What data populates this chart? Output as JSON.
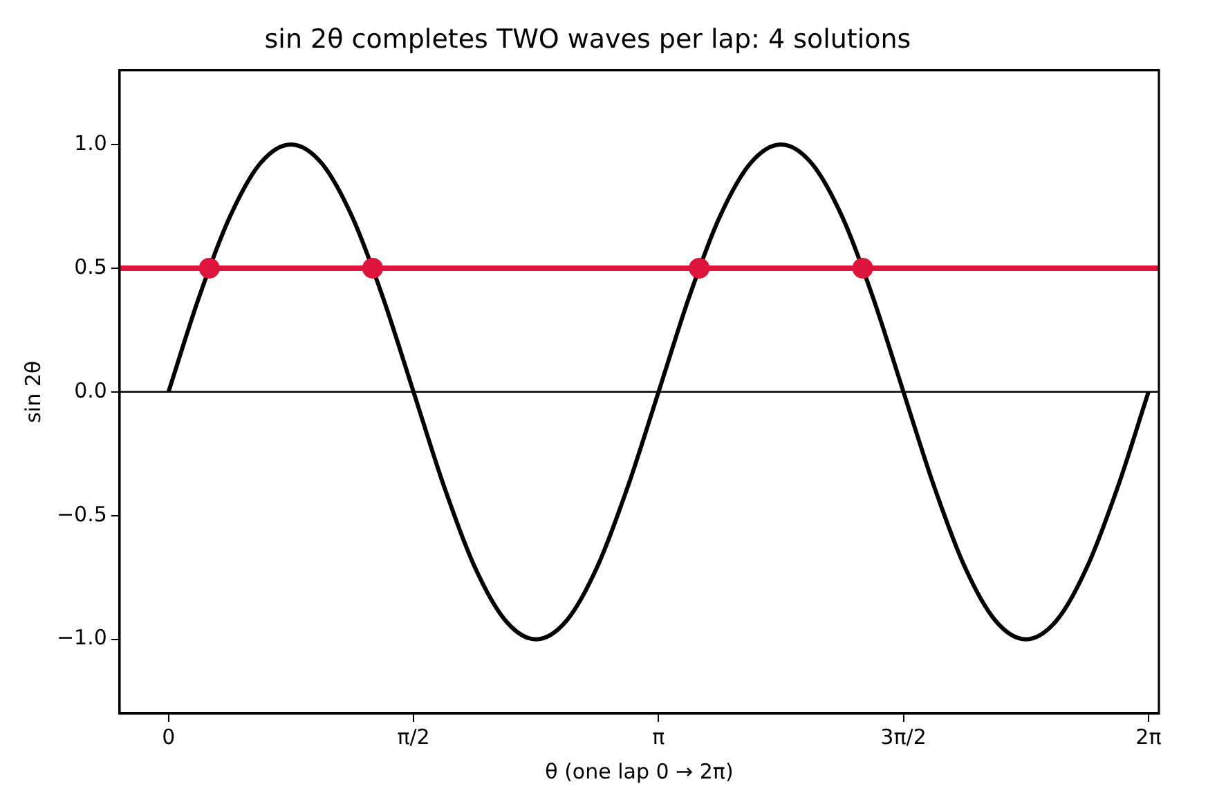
{
  "chart_data": {
    "type": "line",
    "title": "sin 2θ completes TWO waves per lap: 4 solutions",
    "xlabel": "θ (one lap 0 → 2π)",
    "ylabel": "sin 2θ",
    "xlim": [
      -0.314,
      6.35
    ],
    "ylim": [
      -1.3,
      1.3
    ],
    "xticks": [
      {
        "value": 0,
        "label": "0"
      },
      {
        "value": 1.571,
        "label": "π/2"
      },
      {
        "value": 3.142,
        "label": "π"
      },
      {
        "value": 4.712,
        "label": "3π/2"
      },
      {
        "value": 6.283,
        "label": "2π"
      }
    ],
    "yticks": [
      {
        "value": -1,
        "label": "−1.0"
      },
      {
        "value": -0.5,
        "label": "−0.5"
      },
      {
        "value": 0,
        "label": "0.0"
      },
      {
        "value": 0.5,
        "label": "0.5"
      },
      {
        "value": 1,
        "label": "1.0"
      }
    ],
    "grid": false,
    "legend": false,
    "ref_lines": [
      {
        "axis": "y",
        "value": 0,
        "color": "#000000"
      },
      {
        "axis": "y",
        "value": 0.5,
        "color": "#dc143c"
      }
    ],
    "series": [
      {
        "type": "line",
        "color": "#000000",
        "marker": "none",
        "x": [
          0,
          0.196,
          0.393,
          0.589,
          0.785,
          0.982,
          1.178,
          1.374,
          1.571,
          1.767,
          1.963,
          2.16,
          2.356,
          2.553,
          2.749,
          2.945,
          3.142,
          3.338,
          3.534,
          3.731,
          3.927,
          4.123,
          4.32,
          4.516,
          4.712,
          4.909,
          5.105,
          5.301,
          5.498,
          5.694,
          5.89,
          6.087,
          6.283
        ],
        "values": [
          0,
          0.383,
          0.707,
          0.924,
          1,
          0.924,
          0.707,
          0.383,
          0,
          -0.383,
          -0.707,
          -0.924,
          -1,
          -0.924,
          -0.707,
          -0.383,
          0,
          0.383,
          0.707,
          0.924,
          1,
          0.924,
          0.707,
          0.383,
          0,
          -0.383,
          -0.707,
          -0.924,
          -1,
          -0.924,
          -0.707,
          -0.383,
          0
        ]
      },
      {
        "type": "scatter",
        "color": "#dc143c",
        "marker": "circle",
        "x": [
          0.262,
          1.309,
          3.403,
          4.451
        ],
        "values": [
          0.5,
          0.5,
          0.5,
          0.5
        ]
      }
    ]
  }
}
